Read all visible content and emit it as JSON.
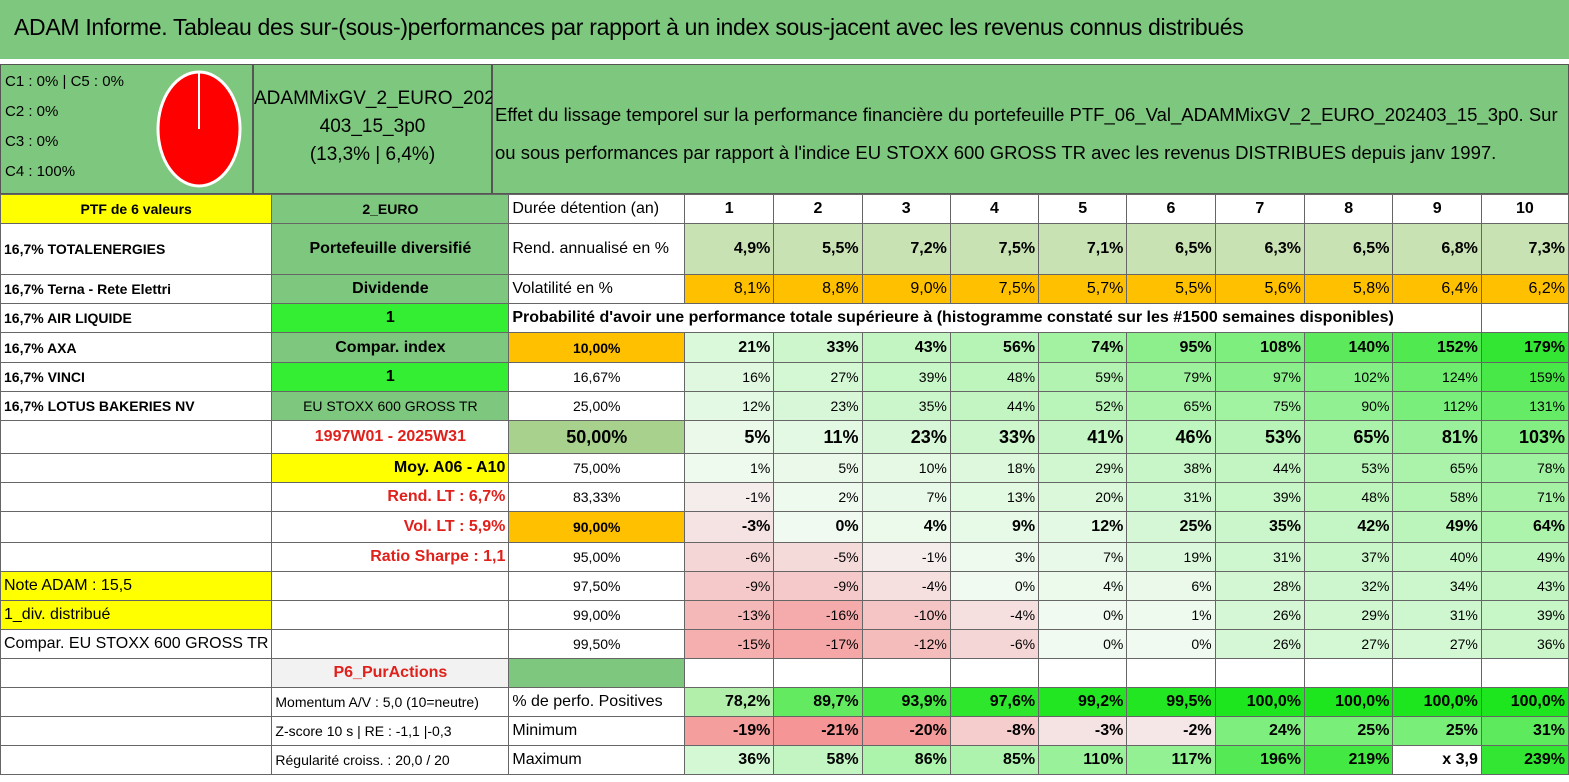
{
  "title": "ADAM Informe. Tableau des sur-(sous-)performances par rapport à un index sous-jacent avec les revenus connus distribués",
  "quality": {
    "lines": [
      "C1 : 0% | C5 : 0%",
      "C2 : 0%",
      "C3 : 0%",
      "C4 : 100%"
    ],
    "pie_color": "#ff0000"
  },
  "fund_name": "ADAMMixGV_2_EURO_202403_15_3p0",
  "fund_name_line1": "ADAMMixGV_2_EURO_202",
  "fund_name_line2": "403_15_3p0",
  "fund_perf": "(13,3% | 6,4%)",
  "description_line1": "Effet du lissage temporel sur la performance financière du portefeuille PTF_06_Val_ADAMMixGV_2_EURO_202403_15_3p0. Sur",
  "description_line2": "ou sous performances par rapport à l'indice EU STOXX 600 GROSS TR avec les revenus DISTRIBUES depuis janv 1997.",
  "portfolio": {
    "header": "PTF de 6 valeurs",
    "holdings": [
      "16,7% TOTALENERGIES",
      "16,7% Terna - Rete Elettri",
      "16,7% AIR LIQUIDE",
      "16,7% AXA",
      "16,7% VINCI",
      "16,7% LOTUS BAKERIES NV"
    ]
  },
  "side": {
    "currency": "2_EURO",
    "diversification": "Portefeuille diversifié",
    "revenue_type": "Dividende",
    "value1": "1",
    "compar_label": "Compar. index",
    "value2": "1",
    "index_name": "EU STOXX 600 GROSS TR",
    "period": "1997W01 - 2025W31",
    "moy": "Moy. A06 - A10",
    "rend_lt": "Rend. LT : 6,7%",
    "vol_lt": "Vol. LT : 5,9%",
    "sharpe": "Ratio Sharpe : 1,1",
    "note": "Note ADAM : 15,5",
    "div": "1_div. distribué",
    "compar_full": "Compar. EU STOXX 600 GROSS TR",
    "pur_actions": "P6_PurActions",
    "momentum": "Momentum A/V : 5,0 (10=neutre)",
    "zscore": "Z-score 10 s | RE : -1,1 |-0,3",
    "regularite": "Régularité croiss. : 20,0 / 20"
  },
  "table": {
    "duration_label": "Durée détention (an)",
    "years": [
      "1",
      "2",
      "3",
      "4",
      "5",
      "6",
      "7",
      "8",
      "9",
      "10"
    ],
    "rend_label": "Rend. annualisé en %",
    "rend": [
      "4,9%",
      "5,5%",
      "7,2%",
      "7,5%",
      "7,1%",
      "6,5%",
      "6,3%",
      "6,5%",
      "6,8%",
      "7,3%"
    ],
    "vol_label": "Volatilité en %",
    "vol": [
      "8,1%",
      "8,8%",
      "9,0%",
      "7,5%",
      "5,7%",
      "5,5%",
      "5,6%",
      "5,8%",
      "6,4%",
      "6,2%"
    ],
    "prob_caption": "Probabilité d'avoir une performance totale supérieure à (histogramme constaté sur les #1500 semaines disponibles)",
    "prob_rows": [
      {
        "p": "10,00%",
        "v": [
          "21%",
          "33%",
          "43%",
          "56%",
          "74%",
          "95%",
          "108%",
          "140%",
          "152%",
          "179%"
        ],
        "n": [
          21,
          33,
          43,
          56,
          74,
          95,
          108,
          140,
          152,
          179
        ],
        "bold": true,
        "hl": "orange"
      },
      {
        "p": "16,67%",
        "v": [
          "16%",
          "27%",
          "39%",
          "48%",
          "59%",
          "79%",
          "97%",
          "102%",
          "124%",
          "159%"
        ],
        "n": [
          16,
          27,
          39,
          48,
          59,
          79,
          97,
          102,
          124,
          159
        ],
        "bold": false,
        "hl": ""
      },
      {
        "p": "25,00%",
        "v": [
          "12%",
          "23%",
          "35%",
          "44%",
          "52%",
          "65%",
          "75%",
          "90%",
          "112%",
          "131%"
        ],
        "n": [
          12,
          23,
          35,
          44,
          52,
          65,
          75,
          90,
          112,
          131
        ],
        "bold": false,
        "hl": ""
      },
      {
        "p": "50,00%",
        "v": [
          "5%",
          "11%",
          "23%",
          "33%",
          "41%",
          "46%",
          "53%",
          "65%",
          "81%",
          "103%"
        ],
        "n": [
          5,
          11,
          23,
          33,
          41,
          46,
          53,
          65,
          81,
          103
        ],
        "bold": true,
        "hl": "green",
        "big": true
      },
      {
        "p": "75,00%",
        "v": [
          "1%",
          "5%",
          "10%",
          "18%",
          "29%",
          "38%",
          "44%",
          "53%",
          "65%",
          "78%"
        ],
        "n": [
          1,
          5,
          10,
          18,
          29,
          38,
          44,
          53,
          65,
          78
        ],
        "bold": false,
        "hl": ""
      },
      {
        "p": "83,33%",
        "v": [
          "-1%",
          "2%",
          "7%",
          "13%",
          "20%",
          "31%",
          "39%",
          "48%",
          "58%",
          "71%"
        ],
        "n": [
          -1,
          2,
          7,
          13,
          20,
          31,
          39,
          48,
          58,
          71
        ],
        "bold": false,
        "hl": ""
      },
      {
        "p": "90,00%",
        "v": [
          "-3%",
          "0%",
          "4%",
          "9%",
          "12%",
          "25%",
          "35%",
          "42%",
          "49%",
          "64%"
        ],
        "n": [
          -3,
          0,
          4,
          9,
          12,
          25,
          35,
          42,
          49,
          64
        ],
        "bold": true,
        "hl": "orange"
      },
      {
        "p": "95,00%",
        "v": [
          "-6%",
          "-5%",
          "-1%",
          "3%",
          "7%",
          "19%",
          "31%",
          "37%",
          "40%",
          "49%"
        ],
        "n": [
          -6,
          -5,
          -1,
          3,
          7,
          19,
          31,
          37,
          40,
          49
        ],
        "bold": false,
        "hl": ""
      },
      {
        "p": "97,50%",
        "v": [
          "-9%",
          "-9%",
          "-4%",
          "0%",
          "4%",
          "6%",
          "28%",
          "32%",
          "34%",
          "43%"
        ],
        "n": [
          -9,
          -9,
          -4,
          0,
          4,
          6,
          28,
          32,
          34,
          43
        ],
        "bold": false,
        "hl": ""
      },
      {
        "p": "99,00%",
        "v": [
          "-13%",
          "-16%",
          "-10%",
          "-4%",
          "0%",
          "1%",
          "26%",
          "29%",
          "31%",
          "39%"
        ],
        "n": [
          -13,
          -16,
          -10,
          -4,
          0,
          1,
          26,
          29,
          31,
          39
        ],
        "bold": false,
        "hl": ""
      },
      {
        "p": "99,50%",
        "v": [
          "-15%",
          "-17%",
          "-12%",
          "-6%",
          "0%",
          "0%",
          "26%",
          "27%",
          "27%",
          "36%"
        ],
        "n": [
          -15,
          -17,
          -12,
          -6,
          0,
          0,
          26,
          27,
          27,
          36
        ],
        "bold": false,
        "hl": ""
      }
    ],
    "pos_label": "% de perfo. Positives",
    "pos": [
      "78,2%",
      "89,7%",
      "93,9%",
      "97,6%",
      "99,2%",
      "99,5%",
      "100,0%",
      "100,0%",
      "100,0%",
      "100,0%"
    ],
    "pos_n": [
      78.2,
      89.7,
      93.9,
      97.6,
      99.2,
      99.5,
      100,
      100,
      100,
      100
    ],
    "min_label": "Minimum",
    "min": [
      "-19%",
      "-21%",
      "-20%",
      "-8%",
      "-3%",
      "-2%",
      "24%",
      "25%",
      "25%",
      "31%"
    ],
    "min_n": [
      -19,
      -21,
      -20,
      -8,
      -3,
      -2,
      24,
      25,
      25,
      31
    ],
    "max_label": "Maximum",
    "max": [
      "36%",
      "58%",
      "86%",
      "85%",
      "110%",
      "117%",
      "196%",
      "219%",
      "x 3,9",
      "239%"
    ],
    "max_n": [
      36,
      58,
      86,
      85,
      110,
      117,
      196,
      219,
      null,
      239
    ]
  }
}
